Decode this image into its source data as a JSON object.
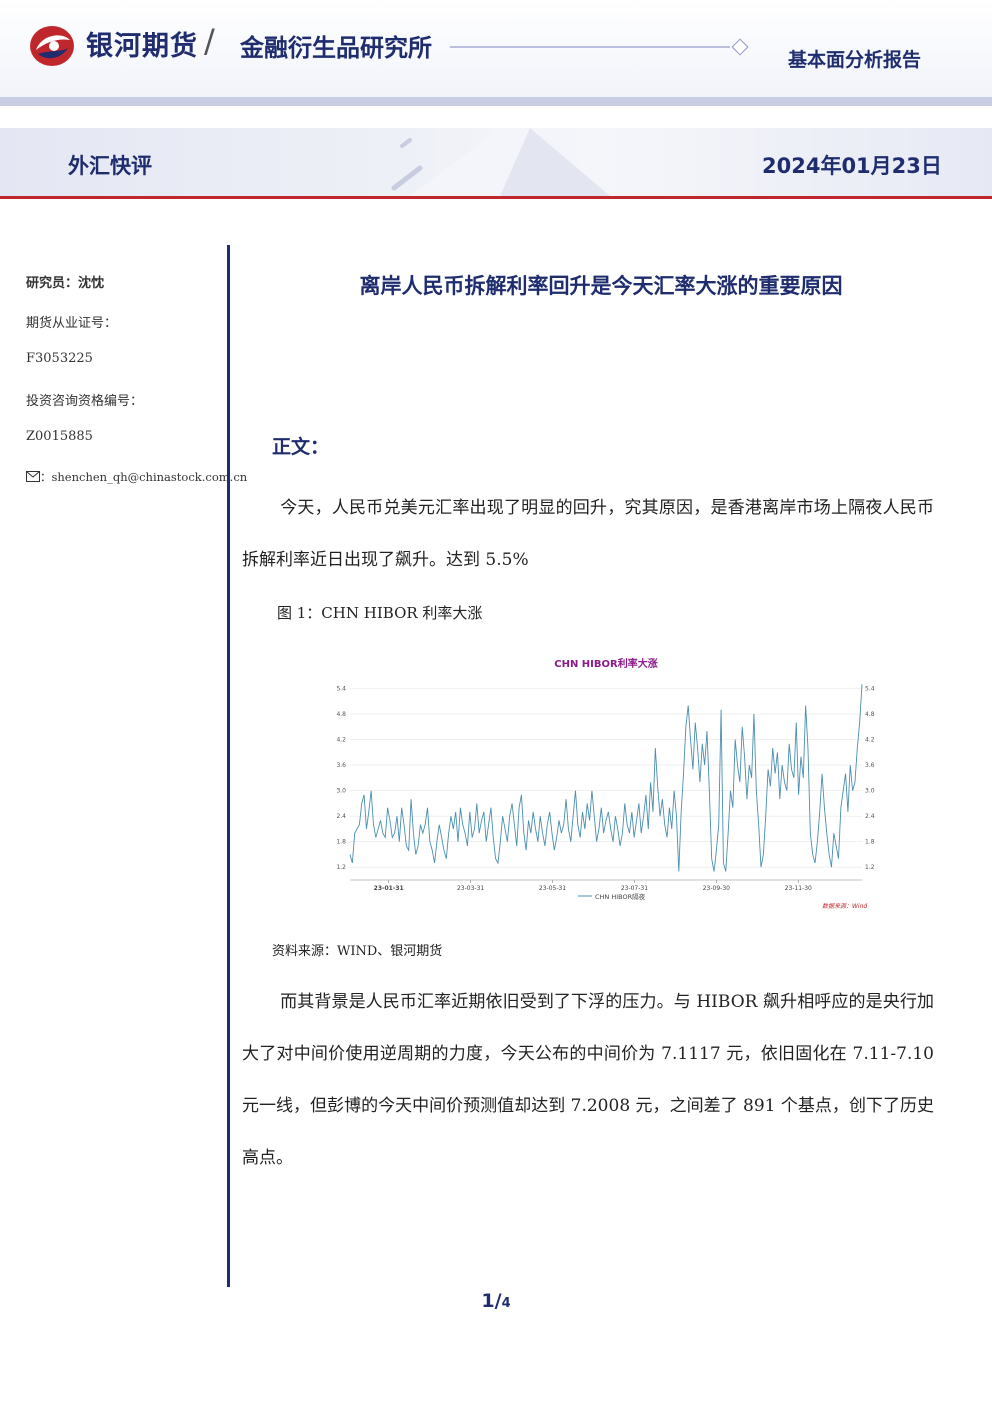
{
  "header": {
    "brand": "银河期货",
    "slash": "/",
    "institute": "金融衍生品研究所",
    "report_type": "基本面分析报告"
  },
  "banner": {
    "column_name": "外汇快评",
    "date": "2024年01月23日"
  },
  "sidebar": {
    "researcher": "研究员：沈忱",
    "futures_license_label": "期货从业证号：",
    "futures_license_value": "F3053225",
    "advisory_license_label": "投资咨询资格编号：",
    "advisory_license_value": "Z0015885",
    "email_prefix": "：",
    "email": "shenchen_qh@chinastock.com.cn"
  },
  "article": {
    "title": "离岸人民币拆解利率回升是今天汇率大涨的重要原因",
    "section": "正文：",
    "para1": "今天，人民币兑美元汇率出现了明显的回升，究其原因，是香港离岸市场上隔夜人民币拆解利率近日出现了飙升。达到 5.5%",
    "figure_caption": "图 1：CHN HIBOR 利率大涨",
    "source": "资料来源：WIND、银河期货",
    "para2": "而其背景是人民币汇率近期依旧受到了下浮的压力。与 HIBOR 飙升相呼应的是央行加大了对中间价使用逆周期的力度，今天公布的中间价为 7.1117 元，依旧固化在 7.11-7.10 元一线，但彭博的今天中间价预测值却达到 7.2008 元，之间差了 891 个基点，创下了历史高点。"
  },
  "page": {
    "current": "1",
    "sep": "/",
    "total": "4"
  },
  "colors": {
    "brand_navy": "#1f2d6e",
    "accent_red": "#c0272d",
    "chart_line": "#4a8fb0",
    "chart_title": "#8b1a8b"
  },
  "chart_data": {
    "type": "line",
    "title": "CHN HIBOR利率大涨",
    "legend": [
      "CHN HIBOR隔夜"
    ],
    "legend_position": "bottom",
    "source_note": "数据来源：Wind",
    "x_tick_labels": [
      "23-01-31",
      "23-03-31",
      "23-05-31",
      "23-07-31",
      "23-09-30",
      "23-11-30"
    ],
    "y_ticks": [
      1.2,
      1.8,
      2.4,
      3.0,
      3.6,
      4.2,
      4.8,
      5.4
    ],
    "ylim": [
      0.9,
      5.6
    ],
    "grid": true,
    "series": [
      {
        "values": [
          1.5,
          1.3,
          2.0,
          2.1,
          2.2,
          2.7,
          2.9,
          2.1,
          2.5,
          3.0,
          2.2,
          1.9,
          2.1,
          2.3,
          2.0,
          1.9,
          2.6,
          2.3,
          1.9,
          2.0,
          2.4,
          1.8,
          2.6,
          2.2,
          1.7,
          1.6,
          2.8,
          2.0,
          1.5,
          1.7,
          2.2,
          2.0,
          2.2,
          2.6,
          1.8,
          1.6,
          1.3,
          1.8,
          2.2,
          1.9,
          1.6,
          1.4,
          2.0,
          2.4,
          2.1,
          2.5,
          1.8,
          2.6,
          2.2,
          2.0,
          1.7,
          2.5,
          1.9,
          2.1,
          2.7,
          2.0,
          2.3,
          2.5,
          1.8,
          2.2,
          2.6,
          1.9,
          1.4,
          1.3,
          1.8,
          2.4,
          2.1,
          1.8,
          2.4,
          2.7,
          2.2,
          1.7,
          2.6,
          2.9,
          2.0,
          1.6,
          2.3,
          2.0,
          2.5,
          2.1,
          1.8,
          2.4,
          2.0,
          1.7,
          2.2,
          2.5,
          2.0,
          1.6,
          1.9,
          2.3,
          2.0,
          2.2,
          2.8,
          2.1,
          1.8,
          2.4,
          3.0,
          2.2,
          1.9,
          2.5,
          2.1,
          2.7,
          2.3,
          3.0,
          2.4,
          1.8,
          2.1,
          2.6,
          2.0,
          2.3,
          2.5,
          2.1,
          1.8,
          2.4,
          2.1,
          1.7,
          2.0,
          2.7,
          2.2,
          2.0,
          2.5,
          1.9,
          2.3,
          2.7,
          2.0,
          2.4,
          2.9,
          2.1,
          3.2,
          2.5,
          4.0,
          3.1,
          2.4,
          2.8,
          2.2,
          1.9,
          2.6,
          2.1,
          3.0,
          2.4,
          1.1,
          2.5,
          3.4,
          4.5,
          5.0,
          4.2,
          3.5,
          4.6,
          4.0,
          3.2,
          4.1,
          3.6,
          4.4,
          3.0,
          1.4,
          1.1,
          1.6,
          2.2,
          4.9,
          1.3,
          1.1,
          2.0,
          3.0,
          2.6,
          4.2,
          3.6,
          3.2,
          4.5,
          3.8,
          2.8,
          3.6,
          3.3,
          4.8,
          3.0,
          2.2,
          1.2,
          1.5,
          2.4,
          3.5,
          3.1,
          4.0,
          3.4,
          3.9,
          2.8,
          3.6,
          3.2,
          3.0,
          4.1,
          3.5,
          3.3,
          4.6,
          2.9,
          3.8,
          3.3,
          5.0,
          4.0,
          2.0,
          1.5,
          1.3,
          1.8,
          2.5,
          3.4,
          2.6,
          2.0,
          1.5,
          1.2,
          2.0,
          1.7,
          1.4,
          2.6,
          3.0,
          3.4,
          2.5,
          3.6,
          3.0,
          3.2,
          4.0,
          4.6,
          5.5
        ]
      }
    ]
  }
}
